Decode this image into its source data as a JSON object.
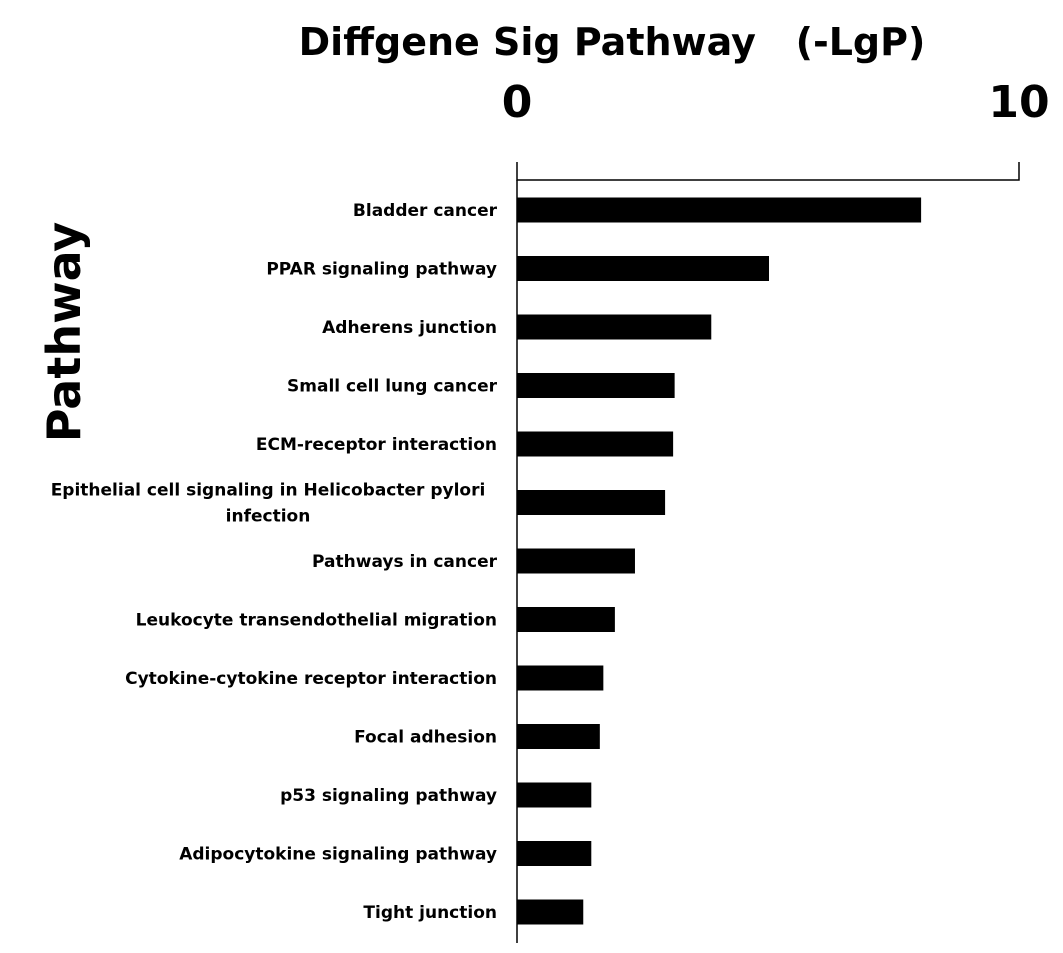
{
  "chart_data": {
    "type": "bar",
    "orientation": "horizontal",
    "title": "Diffgene Sig Pathway   (-LgP)",
    "xlabel": "",
    "ylabel": "Pathway",
    "xlim": [
      0,
      10
    ],
    "xticks": [
      "0",
      "10"
    ],
    "axis_position": "top",
    "grid": false,
    "bar_color": "#000000",
    "categories": [
      [
        "Bladder cancer"
      ],
      [
        "PPAR signaling pathway"
      ],
      [
        "Adherens junction"
      ],
      [
        "Small cell lung cancer"
      ],
      [
        "ECM-receptor interaction"
      ],
      [
        "Epithelial cell signaling in Helicobacter pylori",
        "infection"
      ],
      [
        "Pathways in cancer"
      ],
      [
        "Leukocyte transendothelial migration"
      ],
      [
        "Cytokine-cytokine receptor interaction"
      ],
      [
        "Focal adhesion"
      ],
      [
        "p53 signaling pathway"
      ],
      [
        "Adipocytokine signaling pathway"
      ],
      [
        "Tight junction"
      ]
    ],
    "values": [
      8.05,
      5.02,
      3.87,
      3.14,
      3.11,
      2.95,
      2.35,
      1.95,
      1.72,
      1.65,
      1.48,
      1.48,
      1.32
    ]
  }
}
